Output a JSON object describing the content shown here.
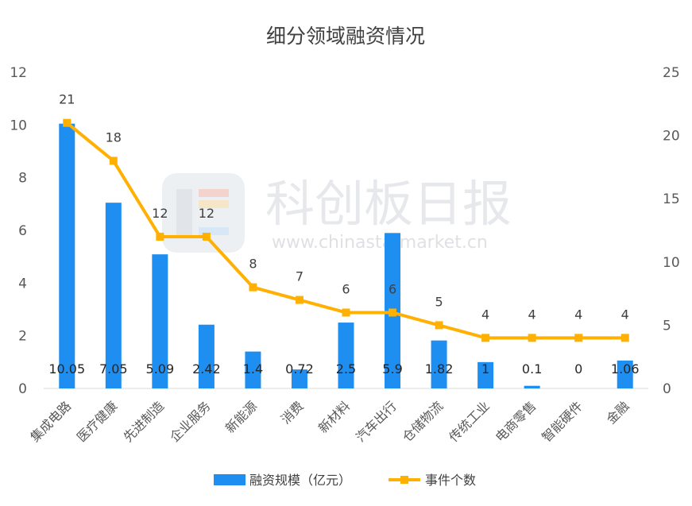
{
  "chart_data": {
    "type": "bar",
    "title": "细分领域融资情况",
    "categories": [
      "集成电路",
      "医疗健康",
      "先进制造",
      "企业服务",
      "新能源",
      "消费",
      "新材料",
      "汽车出行",
      "仓储物流",
      "传统工业",
      "电商零售",
      "智能硬件",
      "金融"
    ],
    "series": [
      {
        "name": "融资规模（亿元）",
        "type": "bar",
        "axis": "left",
        "color": "#1f8ef1",
        "values": [
          10.05,
          7.05,
          5.09,
          2.42,
          1.4,
          0.72,
          2.5,
          5.9,
          1.82,
          1,
          0.1,
          0,
          1.06
        ],
        "labels": [
          "10.05",
          "7.05",
          "5.09",
          "2.42",
          "1.4",
          "0.72",
          "2.5",
          "5.9",
          "1.82",
          "1",
          "0.1",
          "0",
          "1.06"
        ]
      },
      {
        "name": "事件个数",
        "type": "line",
        "axis": "right",
        "color": "#ffb000",
        "values": [
          21,
          18,
          12,
          12,
          8,
          7,
          6,
          6,
          5,
          4,
          4,
          4,
          4
        ]
      }
    ],
    "left_axis": {
      "ylim": [
        0,
        12
      ],
      "ticks": [
        "0",
        "2",
        "4",
        "6",
        "8",
        "10",
        "12"
      ]
    },
    "right_axis": {
      "ylim": [
        0,
        25
      ],
      "ticks": [
        "0",
        "5",
        "10",
        "15",
        "20",
        "25"
      ]
    },
    "grid": false,
    "legend_position": "bottom"
  },
  "watermark": {
    "brand": "科创板日报",
    "url": "www.chinastarmarket.cn"
  }
}
